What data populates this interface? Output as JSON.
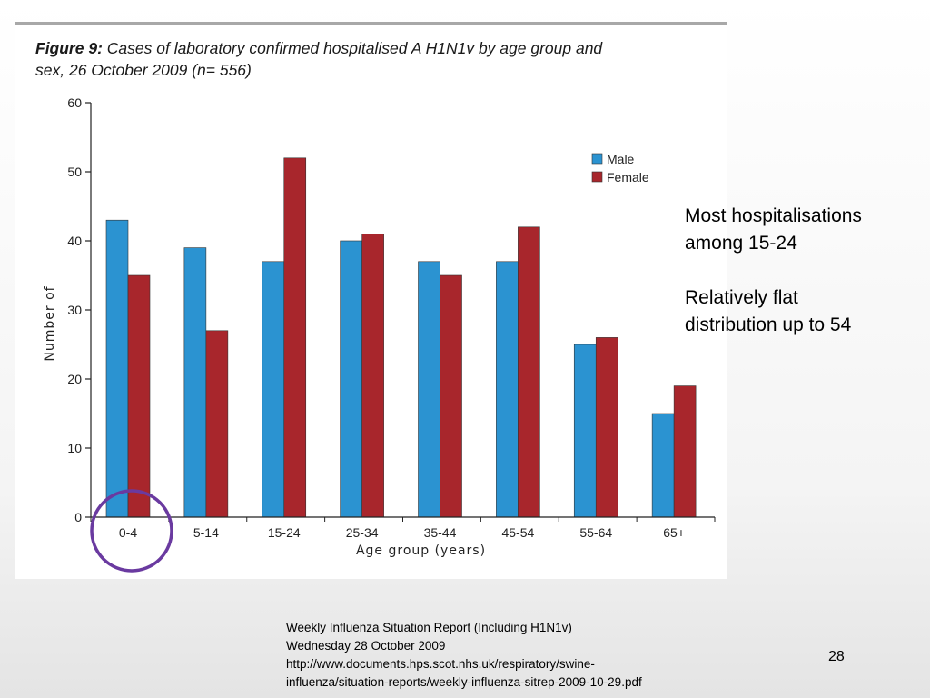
{
  "figure": {
    "label": "Figure 9:",
    "title_line1": " Cases of laboratory confirmed hospitalised A H1N1v by age group and",
    "title_line2": "sex, 26 October 2009 (n= 556)"
  },
  "chart_data": {
    "type": "bar",
    "title": "Figure 9: Cases of laboratory confirmed hospitalised A H1N1v by age group and sex, 26 October 2009 (n= 556)",
    "xlabel": "Age group (years)",
    "ylabel": "Number of",
    "categories": [
      "0-4",
      "5-14",
      "15-24",
      "25-34",
      "35-44",
      "45-54",
      "55-64",
      "65+"
    ],
    "series": [
      {
        "name": "Male",
        "color": "#2b93d1",
        "values": [
          43,
          39,
          37,
          40,
          37,
          37,
          25,
          15
        ]
      },
      {
        "name": "Female",
        "color": "#a8262c",
        "values": [
          35,
          27,
          52,
          41,
          35,
          42,
          26,
          19
        ]
      }
    ],
    "ylim": [
      0,
      60
    ],
    "yticks": [
      0,
      10,
      20,
      30,
      40,
      50,
      60
    ],
    "legend": "top-right",
    "grid": false,
    "highlight": {
      "category": "0-4",
      "shape": "circle",
      "color": "#6a3aa0"
    }
  },
  "annotation": {
    "line1": "Most hospitalisations",
    "line2": "among 15-24",
    "line3": "Relatively flat",
    "line4": "distribution up to 54"
  },
  "source": {
    "line1": "Weekly Influenza Situation Report (Including H1N1v)",
    "line2": "Wednesday 28 October 2009",
    "line3": "http://www.documents.hps.scot.nhs.uk/respiratory/swine-",
    "line4": "influenza/situation-reports/weekly-influenza-sitrep-2009-10-29.pdf"
  },
  "page_number": "28"
}
